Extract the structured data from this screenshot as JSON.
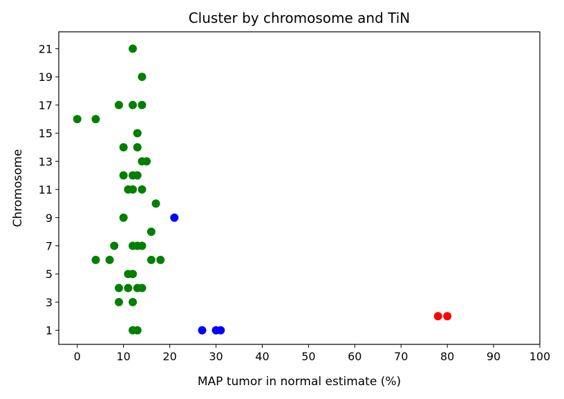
{
  "chart_data": {
    "type": "scatter",
    "title": "Cluster by chromosome and TiN",
    "xlabel": "MAP tumor in normal estimate (%)",
    "ylabel": "Chromosome",
    "xlim": [
      -4,
      100
    ],
    "ylim": [
      0,
      22.2
    ],
    "xticks": [
      "0",
      "10",
      "20",
      "30",
      "40",
      "50",
      "60",
      "70",
      "80",
      "90",
      "100"
    ],
    "yticks": [
      "1",
      "3",
      "5",
      "7",
      "9",
      "11",
      "13",
      "15",
      "17",
      "19",
      "21"
    ],
    "grid": false,
    "series": [
      {
        "color": "#008000",
        "points": [
          [
            12,
            21
          ],
          [
            14,
            19
          ],
          [
            9,
            17
          ],
          [
            12,
            17
          ],
          [
            14,
            17
          ],
          [
            0,
            16
          ],
          [
            4,
            16
          ],
          [
            13,
            15
          ],
          [
            10,
            14
          ],
          [
            13,
            14
          ],
          [
            14,
            13
          ],
          [
            15,
            13
          ],
          [
            10,
            12
          ],
          [
            12,
            12
          ],
          [
            13,
            12
          ],
          [
            11,
            11
          ],
          [
            12,
            11
          ],
          [
            14,
            11
          ],
          [
            17,
            10
          ],
          [
            10,
            9
          ],
          [
            16,
            8
          ],
          [
            8,
            7
          ],
          [
            12,
            7
          ],
          [
            13,
            7
          ],
          [
            14,
            7
          ],
          [
            4,
            6
          ],
          [
            7,
            6
          ],
          [
            16,
            6
          ],
          [
            18,
            6
          ],
          [
            11,
            5
          ],
          [
            12,
            5
          ],
          [
            9,
            4
          ],
          [
            11,
            4
          ],
          [
            13,
            4
          ],
          [
            14,
            4
          ],
          [
            9,
            3
          ],
          [
            12,
            3
          ],
          [
            12,
            1
          ],
          [
            13,
            1
          ]
        ]
      },
      {
        "color": "#0000ff",
        "points": [
          [
            21,
            9
          ],
          [
            27,
            1
          ],
          [
            30,
            1
          ],
          [
            31,
            1
          ]
        ]
      },
      {
        "color": "#ff0000",
        "points": [
          [
            78,
            2
          ],
          [
            80,
            2
          ]
        ]
      }
    ]
  }
}
